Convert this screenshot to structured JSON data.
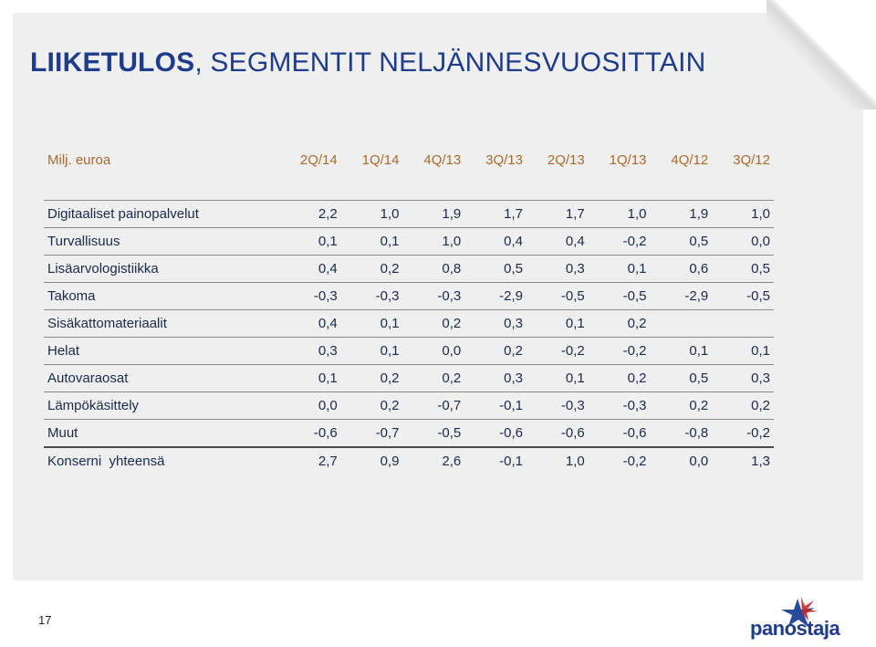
{
  "title": {
    "bold": "LIIKETULOS",
    "rest": ", SEGMENTIT NELJÄNNESVUOSITTAIN"
  },
  "table": {
    "header_label": "Milj. euroa",
    "columns": [
      "2Q/14",
      "1Q/14",
      "4Q/13",
      "3Q/13",
      "2Q/13",
      "1Q/13",
      "4Q/12",
      "3Q/12"
    ],
    "rows": [
      {
        "name": "Digitaaliset painopalvelut",
        "values": [
          "2,2",
          "1,0",
          "1,9",
          "1,7",
          "1,7",
          "1,0",
          "1,9",
          "1,0"
        ]
      },
      {
        "name": "Turvallisuus",
        "values": [
          "0,1",
          "0,1",
          "1,0",
          "0,4",
          "0,4",
          "-0,2",
          "0,5",
          "0,0"
        ]
      },
      {
        "name": "Lisäarvologistiikka",
        "values": [
          "0,4",
          "0,2",
          "0,8",
          "0,5",
          "0,3",
          "0,1",
          "0,6",
          "0,5"
        ]
      },
      {
        "name": "Takoma",
        "values": [
          "-0,3",
          "-0,3",
          "-0,3",
          "-2,9",
          "-0,5",
          "-0,5",
          "-2,9",
          "-0,5"
        ]
      },
      {
        "name": "Sisäkattomateriaalit",
        "values": [
          "0,4",
          "0,1",
          "0,2",
          "0,3",
          "0,1",
          "0,2",
          "",
          ""
        ]
      },
      {
        "name": "Helat",
        "values": [
          "0,3",
          "0,1",
          "0,0",
          "0,2",
          "-0,2",
          "-0,2",
          "0,1",
          "0,1"
        ]
      },
      {
        "name": "Autovaraosat",
        "values": [
          "0,1",
          "0,2",
          "0,2",
          "0,3",
          "0,1",
          "0,2",
          "0,5",
          "0,3"
        ]
      },
      {
        "name": "Lämpökäsittely",
        "values": [
          "0,0",
          "0,2",
          "-0,7",
          "-0,1",
          "-0,3",
          "-0,3",
          "0,2",
          "0,2"
        ]
      },
      {
        "name": "Muut",
        "values": [
          "-0,6",
          "-0,7",
          "-0,5",
          "-0,6",
          "-0,6",
          "-0,6",
          "-0,8",
          "-0,2"
        ]
      }
    ],
    "total": {
      "name": "Konserni  yhteensä",
      "values": [
        "2,7",
        "0,9",
        "2,6",
        "-0,1",
        "1,0",
        "-0,2",
        "0,0",
        "1,3"
      ]
    }
  },
  "page_number": "17",
  "logo": {
    "text": "panostaja",
    "icon": "star-logo-icon"
  },
  "colors": {
    "title": "#1f3c8c",
    "header": "#a86a2a",
    "text": "#1a2a4a",
    "star_blue": "#2a4b9b",
    "star_red": "#c8282e"
  }
}
